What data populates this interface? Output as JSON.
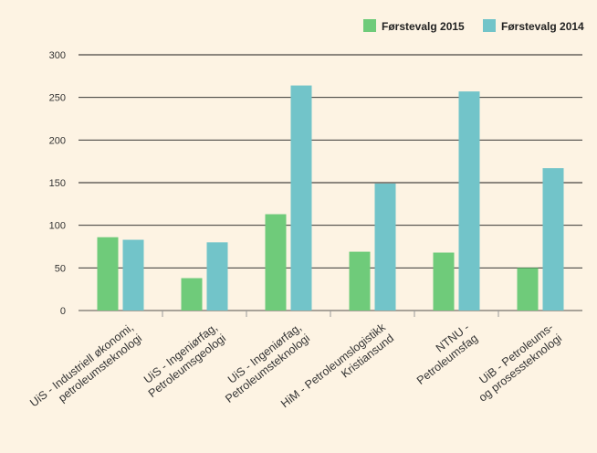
{
  "colors": {
    "background": "#fdf3e3",
    "series_2015": "#6fcb7a",
    "series_2014": "#72c4c9",
    "grid": "#1a1a1a",
    "text": "#333333"
  },
  "chart_data": {
    "type": "bar",
    "categories": [
      [
        "UiS - Industriell økonomi,",
        "petroleumsteknologi"
      ],
      [
        "UiS - Ingeniørfag,",
        "Petroleumsgeologi"
      ],
      [
        "UiS - Ingeniørfag,",
        "Petroleumsteknologi"
      ],
      [
        "HiM - Petroleumslogistikk",
        "Kristiansund"
      ],
      [
        "NTNU -",
        "Petroleumsfag"
      ],
      [
        "UiB - Petroleums-",
        "og prosessteknologi"
      ]
    ],
    "series": [
      {
        "name": "Førstevalg 2015",
        "values": [
          86,
          38,
          113,
          69,
          68,
          50
        ]
      },
      {
        "name": "Førstevalg 2014",
        "values": [
          83,
          80,
          264,
          149,
          257,
          167
        ]
      }
    ],
    "ylim": [
      0,
      300
    ],
    "yticks": [
      0,
      50,
      100,
      150,
      200,
      250,
      300
    ],
    "grid": true,
    "legend": "top-right",
    "title": "",
    "xlabel": "",
    "ylabel": ""
  }
}
